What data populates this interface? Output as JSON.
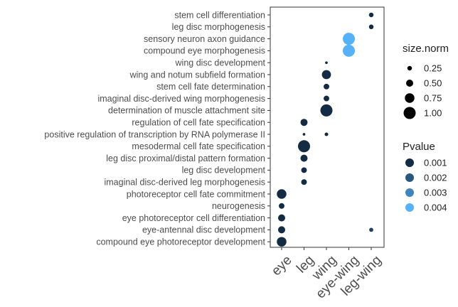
{
  "chart_data": {
    "type": "scatter",
    "x_categories": [
      "eye",
      "leg",
      "wing",
      "eye-wing",
      "leg-wing"
    ],
    "y_categories": [
      "stem cell differentiation",
      "leg disc morphogenesis",
      "sensory neuron axon guidance",
      "compound eye morphogenesis",
      "wing disc development",
      "wing and notum subfield formation",
      "stem cell fate determination",
      "imaginal disc-derived wing morphogenesis",
      "determination of muscle attachment site",
      "regulation of cell fate specification",
      "positive regulation of transcription by RNA polymerase II",
      "mesodermal cell fate specification",
      "leg disc proximal/distal pattern formation",
      "leg disc development",
      "imaginal disc-derived leg morphogenesis",
      "photoreceptor cell fate commitment",
      "neurogenesis",
      "eye photoreceptor cell differentiation",
      "eye-antennal disc development",
      "compound eye photoreceptor development"
    ],
    "points": [
      {
        "x": "leg-wing",
        "y": "stem cell differentiation",
        "size": 0.25,
        "pvalue": 0.001
      },
      {
        "x": "leg-wing",
        "y": "leg disc morphogenesis",
        "size": 0.25,
        "pvalue": 0.001
      },
      {
        "x": "eye-wing",
        "y": "sensory neuron axon guidance",
        "size": 1.0,
        "pvalue": 0.004
      },
      {
        "x": "eye-wing",
        "y": "compound eye morphogenesis",
        "size": 1.0,
        "pvalue": 0.004
      },
      {
        "x": "wing",
        "y": "wing disc development",
        "size": 0.05,
        "pvalue": 0.001
      },
      {
        "x": "wing",
        "y": "wing and notum subfield formation",
        "size": 0.7,
        "pvalue": 0.001
      },
      {
        "x": "wing",
        "y": "stem cell fate determination",
        "size": 0.35,
        "pvalue": 0.001
      },
      {
        "x": "wing",
        "y": "imaginal disc-derived wing morphogenesis",
        "size": 0.35,
        "pvalue": 0.001
      },
      {
        "x": "wing",
        "y": "determination of muscle attachment site",
        "size": 1.0,
        "pvalue": 0.001
      },
      {
        "x": "wing",
        "y": "positive regulation of transcription by RNA polymerase II",
        "size": 0.15,
        "pvalue": 0.001
      },
      {
        "x": "leg",
        "y": "regulation of cell fate specification",
        "size": 0.5,
        "pvalue": 0.001
      },
      {
        "x": "leg",
        "y": "positive regulation of transcription by RNA polymerase II",
        "size": 0.05,
        "pvalue": 0.001
      },
      {
        "x": "leg",
        "y": "mesodermal cell fate specification",
        "size": 1.0,
        "pvalue": 0.001
      },
      {
        "x": "leg",
        "y": "leg disc proximal/distal pattern formation",
        "size": 0.5,
        "pvalue": 0.001
      },
      {
        "x": "leg",
        "y": "leg disc development",
        "size": 0.35,
        "pvalue": 0.001
      },
      {
        "x": "leg",
        "y": "imaginal disc-derived leg morphogenesis",
        "size": 0.35,
        "pvalue": 0.001
      },
      {
        "x": "eye",
        "y": "photoreceptor cell fate commitment",
        "size": 0.75,
        "pvalue": 0.001
      },
      {
        "x": "eye",
        "y": "neurogenesis",
        "size": 0.35,
        "pvalue": 0.001
      },
      {
        "x": "eye",
        "y": "eye photoreceptor cell differentiation",
        "size": 0.5,
        "pvalue": 0.001
      },
      {
        "x": "eye",
        "y": "eye-antennal disc development",
        "size": 0.5,
        "pvalue": 0.001
      },
      {
        "x": "leg-wing",
        "y": "eye-antennal disc development",
        "size": 0.2,
        "pvalue": 0.0015
      },
      {
        "x": "eye",
        "y": "compound eye photoreceptor development",
        "size": 0.75,
        "pvalue": 0.001
      }
    ],
    "size_legend": {
      "title": "size.norm",
      "values": [
        0.25,
        0.5,
        0.75,
        1.0
      ],
      "labels": [
        "0.25",
        "0.50",
        "0.75",
        "1.00"
      ]
    },
    "color_legend": {
      "title": "Pvalue",
      "values": [
        0.001,
        0.002,
        0.003,
        0.004
      ],
      "labels": [
        "0.001",
        "0.002",
        "0.003",
        "0.004"
      ],
      "low_color": "#132B43",
      "high_color": "#56B1F7"
    },
    "grid": false,
    "legend_position": "right"
  }
}
